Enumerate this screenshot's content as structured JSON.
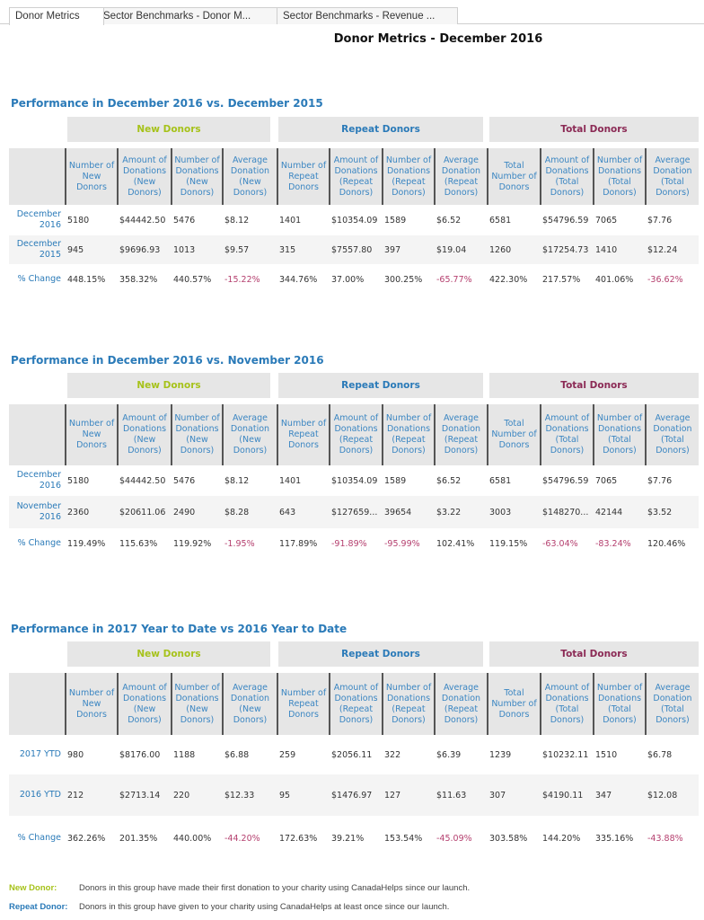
{
  "tabs": [
    {
      "label": "Donor Metrics",
      "active": true
    },
    {
      "label": "Sector Benchmarks - Donor M..."
    },
    {
      "label": "Sector Benchmarks - Revenue ..."
    }
  ],
  "page_title": "Donor Metrics - December 2016",
  "colors": {
    "blue": "#2a7ab8",
    "new_donors": "#a6c21a",
    "total_donors": "#8b2a55",
    "negative": "#b5406f"
  },
  "groups": [
    "New Donors",
    "Repeat Donors",
    "Total Donors"
  ],
  "column_headers": [
    "Number of New Donors",
    "Amount of Donations (New Donors)",
    "Number of Donations (New Donors)",
    "Average Donation (New Donors)",
    "Number of Repeat Donors",
    "Amount of Donations (Repeat Donors)",
    "Number of Donations (Repeat Donors)",
    "Average Donation (Repeat Donors)",
    "Total Number of Donors",
    "Amount of Donations (Total Donors)",
    "Number of Donations (Total Donors)",
    "Average Donation (Total Donors)"
  ],
  "sections": [
    {
      "title": "Performance in December 2016 vs. December 2015",
      "rows": [
        {
          "label": "December 2016",
          "values": [
            "5180",
            "$44442.50",
            "5476",
            "$8.12",
            "1401",
            "$10354.09",
            "1589",
            "$6.52",
            "6581",
            "$54796.59",
            "7065",
            "$7.76"
          ]
        },
        {
          "label": "December 2015",
          "values": [
            "945",
            "$9696.93",
            "1013",
            "$9.57",
            "315",
            "$7557.80",
            "397",
            "$19.04",
            "1260",
            "$17254.73",
            "1410",
            "$12.24"
          ]
        },
        {
          "label": "% Change",
          "values": [
            "448.15%",
            "358.32%",
            "440.57%",
            "-15.22%",
            "344.76%",
            "37.00%",
            "300.25%",
            "-65.77%",
            "422.30%",
            "217.57%",
            "401.06%",
            "-36.62%"
          ]
        }
      ]
    },
    {
      "title": "Performance in December 2016 vs. November 2016",
      "rows": [
        {
          "label": "December 2016",
          "values": [
            "5180",
            "$44442.50",
            "5476",
            "$8.12",
            "1401",
            "$10354.09",
            "1589",
            "$6.52",
            "6581",
            "$54796.59",
            "7065",
            "$7.76"
          ]
        },
        {
          "label": "November 2016",
          "values": [
            "2360",
            "$20611.06",
            "2490",
            "$8.28",
            "643",
            "$127659...",
            "39654",
            "$3.22",
            "3003",
            "$148270...",
            "42144",
            "$3.52"
          ]
        },
        {
          "label": "% Change",
          "values": [
            "119.49%",
            "115.63%",
            "119.92%",
            "-1.95%",
            "117.89%",
            "-91.89%",
            "-95.99%",
            "102.41%",
            "119.15%",
            "-63.04%",
            "-83.24%",
            "120.46%"
          ]
        }
      ]
    },
    {
      "title": "Performance in 2017 Year to Date vs 2016 Year to Date",
      "rows": [
        {
          "label": "2017 YTD",
          "values": [
            "980",
            "$8176.00",
            "1188",
            "$6.88",
            "259",
            "$2056.11",
            "322",
            "$6.39",
            "1239",
            "$10232.11",
            "1510",
            "$6.78"
          ]
        },
        {
          "label": "2016 YTD",
          "values": [
            "212",
            "$2713.14",
            "220",
            "$12.33",
            "95",
            "$1476.97",
            "127",
            "$11.63",
            "307",
            "$4190.11",
            "347",
            "$12.08"
          ]
        },
        {
          "label": "% Change",
          "values": [
            "362.26%",
            "201.35%",
            "440.00%",
            "-44.20%",
            "172.63%",
            "39.21%",
            "153.54%",
            "-45.09%",
            "303.58%",
            "144.20%",
            "335.16%",
            "-43.88%"
          ]
        }
      ]
    }
  ],
  "notes": [
    {
      "term": "New Donor:",
      "text": "Donors in this group have made their first donation to your charity using CanadaHelps since our launch."
    },
    {
      "term": "Repeat Donor:",
      "text": "Donors in this group have given to your charity using CanadaHelps at least once since our launch."
    }
  ]
}
